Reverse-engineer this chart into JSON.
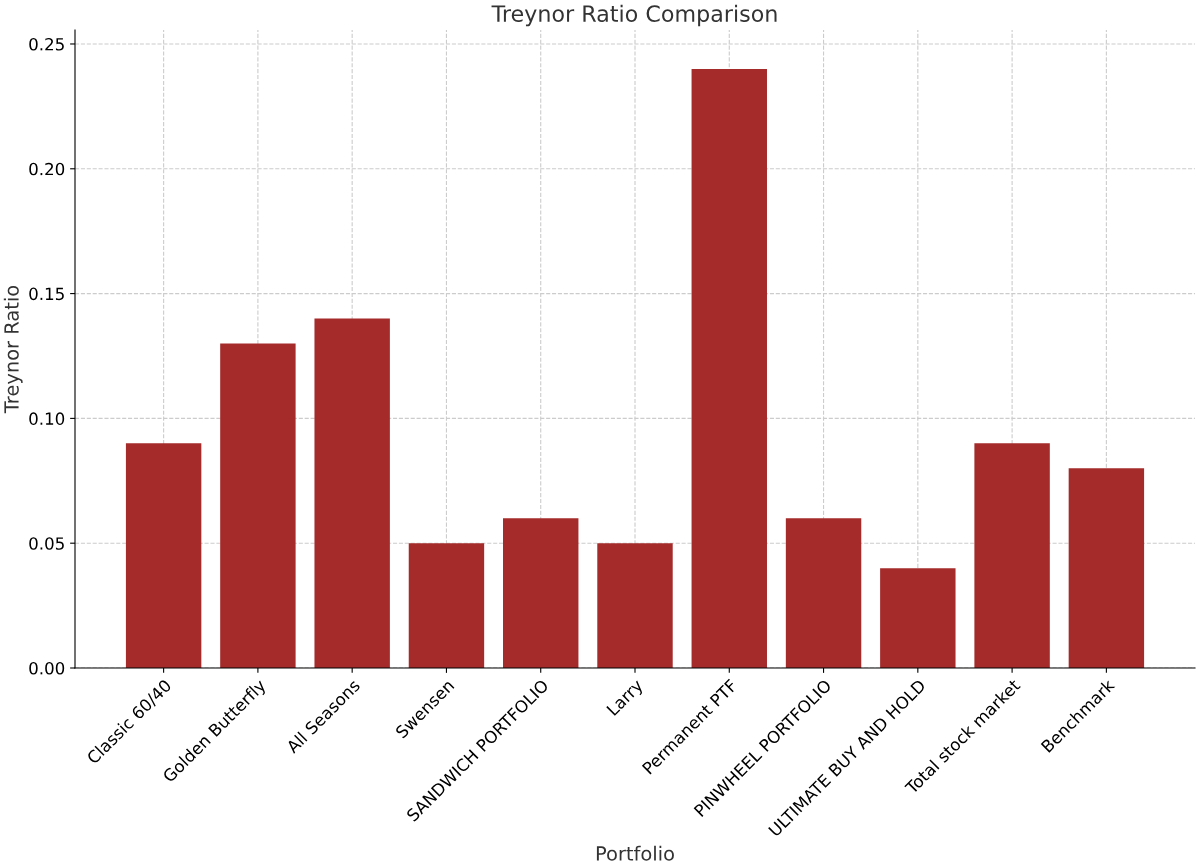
{
  "chart_data": {
    "type": "bar",
    "title": "Treynor Ratio Comparison",
    "xlabel": "Portfolio",
    "ylabel": "Treynor Ratio",
    "categories": [
      "Classic 60/40",
      "Golden Butterfly",
      "All Seasons",
      "Swensen",
      "SANDWICH PORTFOLIO",
      "Larry",
      "Permanent PTF",
      "PINWHEEL PORTFOLIO",
      "ULTIMATE BUY AND HOLD",
      "Total stock market",
      "Benchmark"
    ],
    "values": [
      0.09,
      0.13,
      0.14,
      0.05,
      0.06,
      0.05,
      0.24,
      0.06,
      0.04,
      0.09,
      0.08
    ],
    "color": "#a52a2a",
    "ylim": [
      0,
      0.2556
    ],
    "yticks": [
      {
        "value": 0,
        "label": "0.00"
      },
      {
        "value": 0.05,
        "label": "0.05"
      },
      {
        "value": 0.1,
        "label": "0.10"
      },
      {
        "value": 0.15,
        "label": "0.15"
      },
      {
        "value": 0.2,
        "label": "0.20"
      },
      {
        "value": 0.25,
        "label": "0.25"
      }
    ],
    "grid": true
  }
}
